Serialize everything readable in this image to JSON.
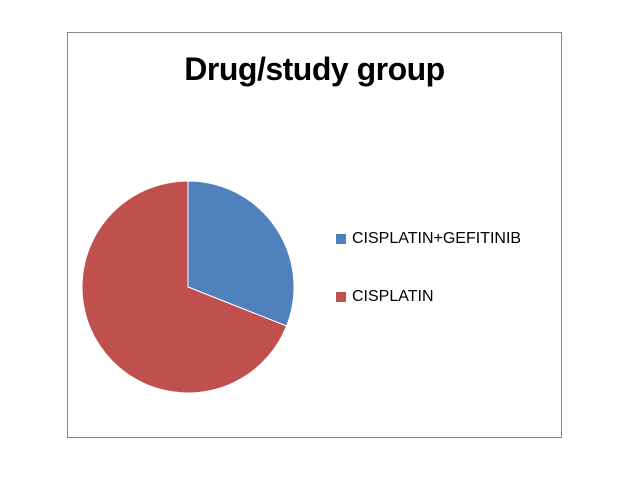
{
  "chart_data": {
    "type": "pie",
    "title": "Drug/study group",
    "legend_position": "right",
    "slices": [
      {
        "label": "CISPLATIN+GEFITINIB",
        "value": 31,
        "color": "#4f81bd"
      },
      {
        "label": "CISPLATIN",
        "value": 69,
        "color": "#c0504d"
      }
    ]
  }
}
